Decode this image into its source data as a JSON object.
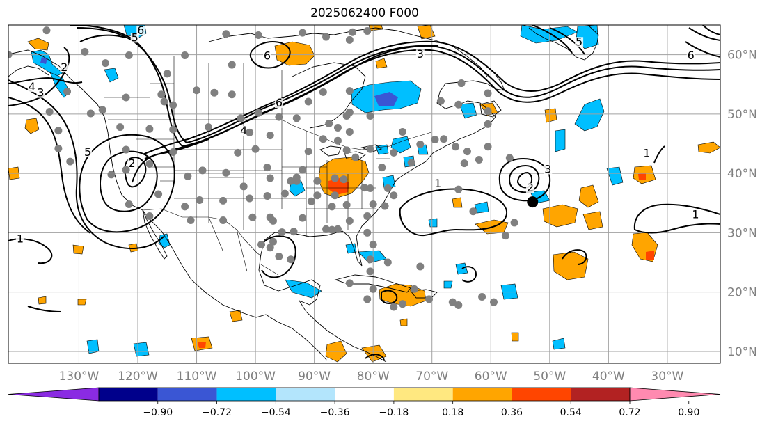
{
  "title": "2025062400 F000",
  "map": {
    "projection": "PlateCarree",
    "lon_range": [
      -142,
      -21
    ],
    "lat_range": [
      8,
      65
    ],
    "lon_ticks": [
      {
        "value": -130,
        "label": "130°W"
      },
      {
        "value": -120,
        "label": "120°W"
      },
      {
        "value": -110,
        "label": "110°W"
      },
      {
        "value": -100,
        "label": "100°W"
      },
      {
        "value": -90,
        "label": "90°W"
      },
      {
        "value": -80,
        "label": "80°W"
      },
      {
        "value": -70,
        "label": "70°W"
      },
      {
        "value": -60,
        "label": "60°W"
      },
      {
        "value": -50,
        "label": "50°W"
      },
      {
        "value": -40,
        "label": "40°W"
      },
      {
        "value": -30,
        "label": "30°W"
      }
    ],
    "lat_ticks": [
      {
        "value": 60,
        "label": "60°N"
      },
      {
        "value": 50,
        "label": "50°N"
      },
      {
        "value": 40,
        "label": "40°N"
      },
      {
        "value": 30,
        "label": "30°N"
      },
      {
        "value": 20,
        "label": "20°N"
      },
      {
        "value": 10,
        "label": "10°N"
      }
    ],
    "grid": true,
    "marker": {
      "lon": -52.9,
      "lat": 35.2,
      "color": "#000000"
    },
    "contour_labels": [
      {
        "text": "6",
        "lon": -119.5,
        "lat": 63.7
      },
      {
        "text": "5",
        "lon": -120.5,
        "lat": 62.5
      },
      {
        "text": "2",
        "lon": -132.5,
        "lat": 57.5
      },
      {
        "text": "4",
        "lon": -138,
        "lat": 54.2
      },
      {
        "text": "3",
        "lon": -136.5,
        "lat": 53.2
      },
      {
        "text": "6",
        "lon": -98,
        "lat": 59.4
      },
      {
        "text": "6",
        "lon": -96,
        "lat": 51.5
      },
      {
        "text": "4",
        "lon": -102,
        "lat": 46.8
      },
      {
        "text": "3",
        "lon": -72,
        "lat": 59.7
      },
      {
        "text": "5",
        "lon": -45,
        "lat": 61.8
      },
      {
        "text": "6",
        "lon": -26,
        "lat": 59.5
      },
      {
        "text": "5",
        "lon": -128.5,
        "lat": 43.2
      },
      {
        "text": "2",
        "lon": -121,
        "lat": 41.3
      },
      {
        "text": "1",
        "lon": -140,
        "lat": 28.6
      },
      {
        "text": "1",
        "lon": -69,
        "lat": 37.9
      },
      {
        "text": "3",
        "lon": -50.3,
        "lat": 40.3
      },
      {
        "text": "2",
        "lon": -53.3,
        "lat": 37.2
      },
      {
        "text": "1",
        "lon": -33.5,
        "lat": 43
      },
      {
        "text": "1",
        "lon": -25.2,
        "lat": 32.7
      }
    ],
    "stations": [
      [
        -142,
        60
      ],
      [
        -135.5,
        64.1
      ],
      [
        -129,
        60.5
      ],
      [
        -121.5,
        59.9
      ],
      [
        -125.5,
        58.6
      ],
      [
        -112,
        59.9
      ],
      [
        -132,
        53.8
      ],
      [
        -135,
        50.4
      ],
      [
        -128,
        50.1
      ],
      [
        -126,
        50.7
      ],
      [
        -122,
        52.8
      ],
      [
        -116,
        53.3
      ],
      [
        -115,
        56.8
      ],
      [
        -110,
        54
      ],
      [
        -107,
        53.6
      ],
      [
        -104,
        53.3
      ],
      [
        -123,
        47.8
      ],
      [
        -118,
        47.5
      ],
      [
        -114,
        47.4
      ],
      [
        -108,
        47.8
      ],
      [
        -101,
        46.9
      ],
      [
        -97.5,
        46.4
      ],
      [
        -96,
        49.5
      ],
      [
        -91,
        52.1
      ],
      [
        -88.5,
        53.7
      ],
      [
        -84,
        53.9
      ],
      [
        -84.5,
        49.7
      ],
      [
        -104,
        58.3
      ],
      [
        -115.5,
        52.1
      ],
      [
        -114,
        51.5
      ],
      [
        -102.5,
        49.3
      ],
      [
        -99.5,
        50.2
      ],
      [
        -93,
        49.3
      ],
      [
        -133.5,
        47.2
      ],
      [
        -133.5,
        44.2
      ],
      [
        -131.5,
        42
      ],
      [
        -122,
        44
      ],
      [
        -122,
        40.6
      ],
      [
        -118,
        41.6
      ],
      [
        -114,
        43.6
      ],
      [
        -111.5,
        39.5
      ],
      [
        -109,
        40.5
      ],
      [
        -105,
        40.1
      ],
      [
        -103,
        43.5
      ],
      [
        -100,
        44.1
      ],
      [
        -98,
        41
      ],
      [
        -97.5,
        39.2
      ],
      [
        -93,
        38.7
      ],
      [
        -92,
        40.6
      ],
      [
        -91,
        43.7
      ],
      [
        -88.5,
        45.8
      ],
      [
        -86,
        45.5
      ],
      [
        -84,
        47
      ],
      [
        -84.5,
        43.9
      ],
      [
        -83,
        42.7
      ],
      [
        -80.5,
        44.1
      ],
      [
        -78.5,
        41
      ],
      [
        -76.5,
        43.5
      ],
      [
        -73.5,
        41.8
      ],
      [
        -72,
        44.9
      ],
      [
        -69.5,
        45.7
      ],
      [
        -68,
        45.8
      ],
      [
        -66,
        44.5
      ],
      [
        -64,
        43.7
      ],
      [
        -62,
        42.3
      ],
      [
        -64.5,
        41.7
      ],
      [
        -60.5,
        44.5
      ],
      [
        -60.5,
        48.3
      ],
      [
        -60.5,
        50.5
      ],
      [
        -65.5,
        51.6
      ],
      [
        -60.5,
        53.5
      ],
      [
        -65,
        55.2
      ],
      [
        -68.5,
        52.2
      ],
      [
        -80.5,
        49.7
      ],
      [
        -75,
        47
      ],
      [
        -84,
        50.3
      ],
      [
        -87.5,
        48.4
      ],
      [
        -86,
        47.7
      ],
      [
        -93,
        39.3
      ],
      [
        -98,
        36.2
      ],
      [
        -101,
        35.8
      ],
      [
        -102,
        37.8
      ],
      [
        -105.5,
        35.4
      ],
      [
        -109.5,
        35.5
      ],
      [
        -112,
        34.4
      ],
      [
        -116.5,
        36.5
      ],
      [
        -118,
        32.8
      ],
      [
        -121.5,
        34.8
      ],
      [
        -124.5,
        39.8
      ],
      [
        -111,
        32.1
      ],
      [
        -105.5,
        32.1
      ],
      [
        -100.5,
        32.6
      ],
      [
        -97.5,
        32.6
      ],
      [
        -95,
        36.6
      ],
      [
        -94,
        38.7
      ],
      [
        -89.5,
        38.7
      ],
      [
        -86.5,
        39.2
      ],
      [
        -85,
        39
      ],
      [
        -81.5,
        37.6
      ],
      [
        -80.5,
        37.5
      ],
      [
        -77.5,
        37.5
      ],
      [
        -76.5,
        36.3
      ],
      [
        -78,
        34.5
      ],
      [
        -80,
        34.8
      ],
      [
        -81,
        32.8
      ],
      [
        -84.5,
        34.7
      ],
      [
        -86.5,
        36.3
      ],
      [
        -89.5,
        36.3
      ],
      [
        -90.5,
        35.3
      ],
      [
        -87,
        34.4
      ],
      [
        -84,
        32
      ],
      [
        -86,
        30.6
      ],
      [
        -88,
        30.6
      ],
      [
        -92,
        32.5
      ],
      [
        -93.5,
        30.2
      ],
      [
        -95.5,
        30.1
      ],
      [
        -97.5,
        27.5
      ],
      [
        -99,
        28
      ],
      [
        -96,
        26
      ],
      [
        -94,
        25.5
      ],
      [
        -97,
        28.5
      ],
      [
        -97,
        32
      ],
      [
        -87,
        30.5
      ],
      [
        -81,
        30
      ],
      [
        -80,
        28
      ],
      [
        -80.5,
        25.5
      ],
      [
        -77.5,
        25
      ],
      [
        -73,
        20.5
      ],
      [
        -76.5,
        17.5
      ],
      [
        -80,
        20.5
      ],
      [
        -81,
        18.8
      ],
      [
        -84,
        21.5
      ],
      [
        -80.5,
        23.5
      ],
      [
        -75,
        18
      ],
      [
        -70.5,
        18.8
      ],
      [
        -66.5,
        18.3
      ],
      [
        -61.5,
        19.2
      ],
      [
        -59.5,
        18.3
      ],
      [
        -65.5,
        17.8
      ],
      [
        -56.8,
        42.6
      ],
      [
        -65.5,
        37.3
      ],
      [
        -56,
        31.7
      ],
      [
        -57.5,
        29.5
      ],
      [
        -63,
        33.6
      ],
      [
        -72,
        24.3
      ],
      [
        -105,
        63.5
      ],
      [
        -99.5,
        63.3
      ],
      [
        -92,
        63.7
      ],
      [
        -88,
        63
      ],
      [
        -84,
        62.5
      ],
      [
        -83.5,
        63.8
      ],
      [
        -81,
        64
      ]
    ],
    "precip_colors": {
      "pos_low": "#ffe066",
      "pos_med": "#ffa500",
      "pos_high": "#ff4500",
      "pos_max": "#e0141e",
      "neg_low": "#b3e5fc",
      "neg_med": "#00bfff",
      "neg_high": "#3a56d4"
    }
  },
  "colorbar": {
    "ticks": [
      "−0.90",
      "−0.72",
      "−0.54",
      "−0.36",
      "−0.18",
      "0.18",
      "0.36",
      "0.54",
      "0.72",
      "0.90"
    ],
    "colors": [
      "#8a2be2",
      "#00008b",
      "#3a56d4",
      "#00bfff",
      "#b3e5fc",
      "#ffffff",
      "#ffe880",
      "#ffa500",
      "#ff4500",
      "#b22222",
      "#ff8ab0"
    ]
  }
}
